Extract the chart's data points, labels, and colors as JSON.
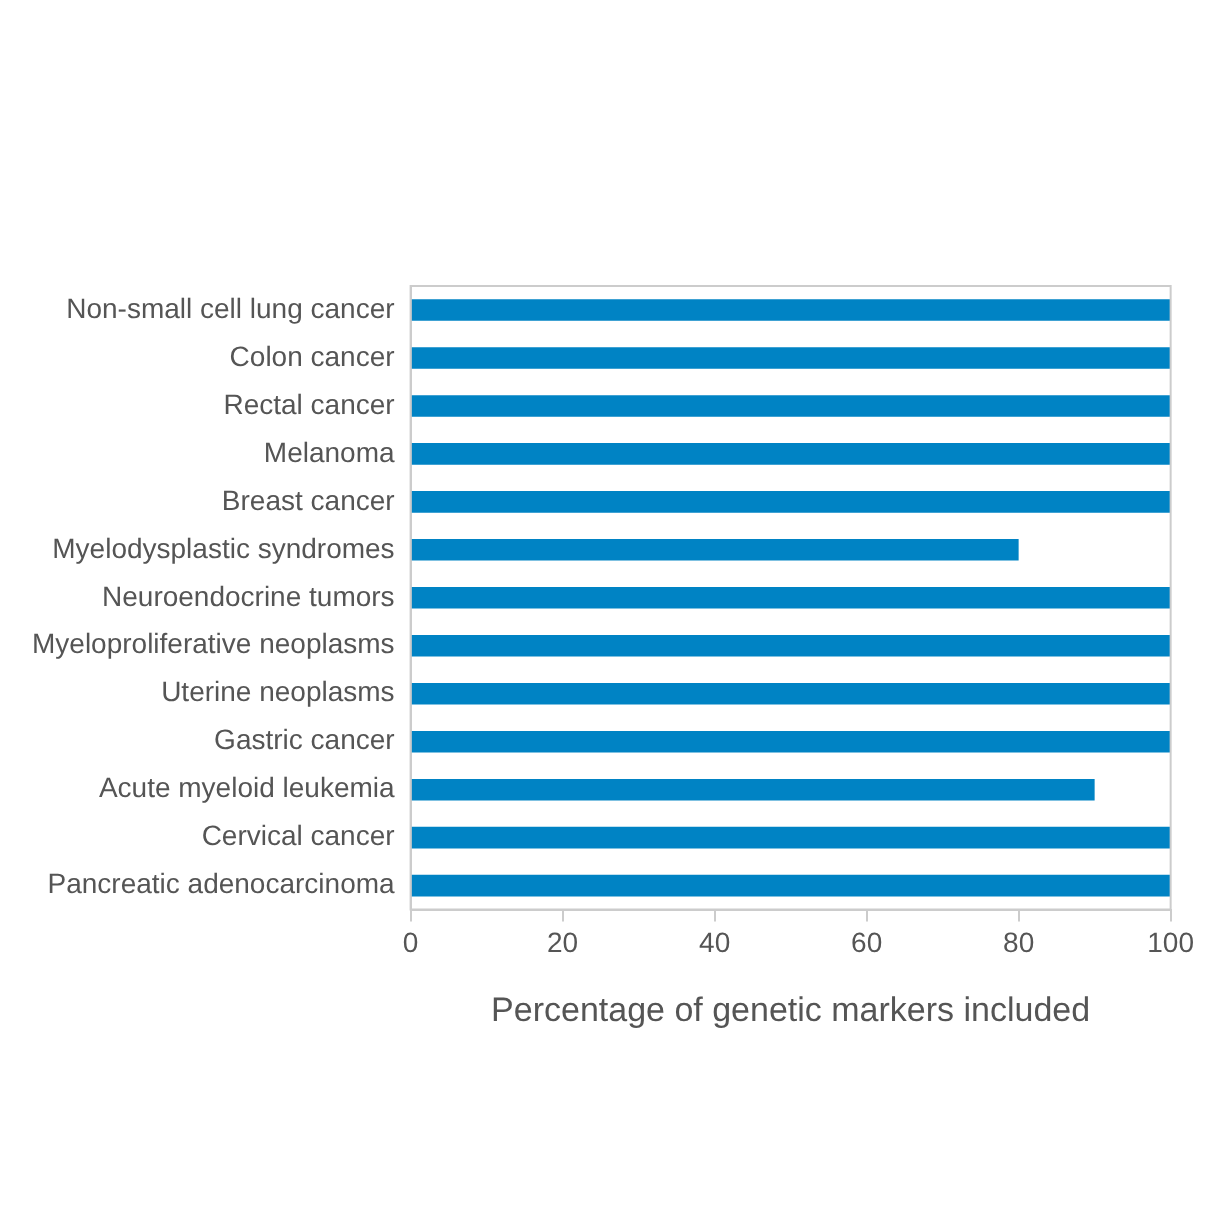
{
  "chart_data": {
    "type": "bar",
    "orientation": "horizontal",
    "xlabel": "Percentage of genetic markers included",
    "categories": [
      "Non-small cell lung cancer",
      "Colon cancer",
      "Rectal cancer",
      "Melanoma",
      "Breast cancer",
      "Myelodysplastic syndromes",
      "Neuroendocrine tumors",
      "Myeloproliferative neoplasms",
      "Uterine neoplasms",
      "Gastric cancer",
      "Acute myeloid leukemia",
      "Cervical cancer",
      "Pancreatic adenocarcinoma"
    ],
    "values": [
      100,
      100,
      100,
      100,
      100,
      80,
      100,
      100,
      100,
      100,
      90,
      100,
      100
    ],
    "color": "#0083c4",
    "xlim": [
      0,
      100
    ],
    "xticks": [
      0,
      20,
      40,
      60,
      80,
      100
    ],
    "grid": false,
    "legend": false
  }
}
